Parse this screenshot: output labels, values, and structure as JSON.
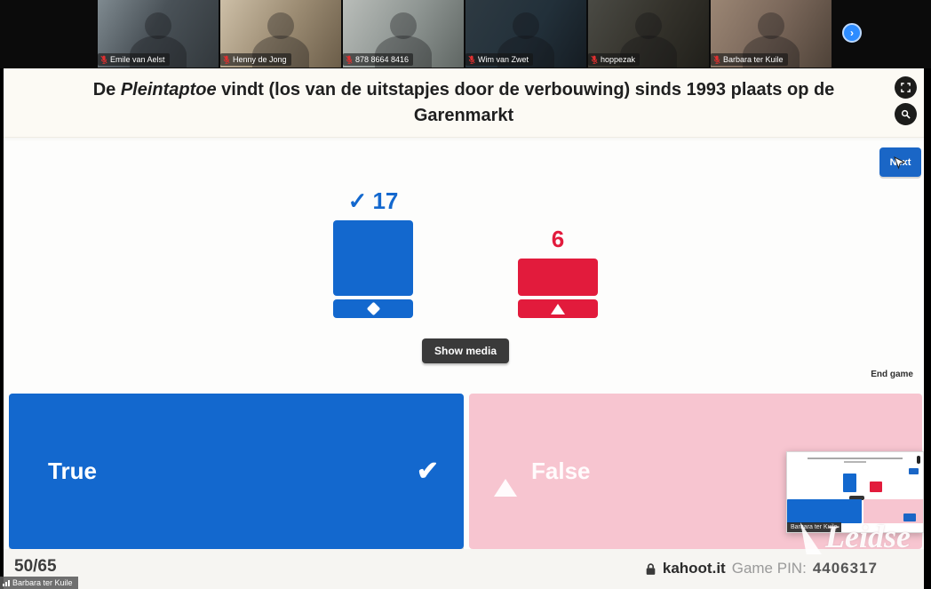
{
  "video_strip": {
    "participants": [
      {
        "name": "Emile van Aelst",
        "muted": true
      },
      {
        "name": "Henny de Jong",
        "muted": true
      },
      {
        "name": "878 8664 8416",
        "muted": true
      },
      {
        "name": "Wim van Zwet",
        "muted": true
      },
      {
        "name": "hoppezak",
        "muted": true
      },
      {
        "name": "Barbara ter Kuile",
        "muted": true
      }
    ],
    "next_page_glyph": "›"
  },
  "question": {
    "prefix": "De ",
    "italic": "Pleintaptoe",
    "suffix": " vindt (los van de uitstapjes door de verbouwing) sinds 1993 plaats op de Garenmarkt"
  },
  "toolbar": {
    "next_label": "Next",
    "show_media_label": "Show media",
    "end_game_label": "End game"
  },
  "chart_data": {
    "type": "bar",
    "categories": [
      "True",
      "False"
    ],
    "values": [
      17,
      6
    ],
    "series_colors": [
      "#1368CE",
      "#E21B3C"
    ],
    "correct_answer": "True",
    "check_glyph": "✓",
    "legend_position": "none",
    "grid": false
  },
  "answers": [
    {
      "label": "True",
      "shape": "diamond",
      "color": "#1368CE",
      "correct": true,
      "tick_glyph": "✔"
    },
    {
      "label": "False",
      "shape": "triangle",
      "color": "#F7C5D0",
      "correct": false
    }
  ],
  "footer": {
    "progress": "50/65",
    "site": "kahoot.it",
    "pin_label": "Game PIN:",
    "pin": "4406317"
  },
  "overlays": {
    "share_label": "Barbara ter Kuile",
    "thumbnail_name": "Barbara ter Kuile",
    "watermark": "Leidse"
  },
  "colors": {
    "kahoot_blue": "#1368CE",
    "kahoot_red": "#E21B3C",
    "faded_pink": "#F7C5D0",
    "header_bg": "#FCFAF4"
  }
}
